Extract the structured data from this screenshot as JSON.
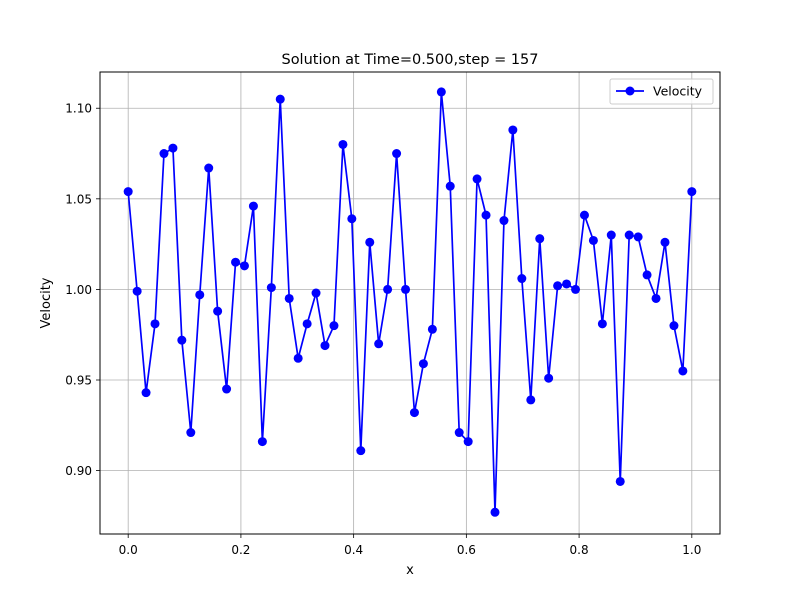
{
  "chart_data": {
    "type": "line",
    "title": "Solution at Time=0.500,step = 157",
    "xlabel": "x",
    "ylabel": "Velocity",
    "xlim": [
      -0.05,
      1.05
    ],
    "ylim": [
      0.865,
      1.12
    ],
    "xticks": [
      0.0,
      0.2,
      0.4,
      0.6,
      0.8,
      1.0
    ],
    "xtick_labels": [
      "0.0",
      "0.2",
      "0.4",
      "0.6",
      "0.8",
      "1.0"
    ],
    "yticks": [
      0.9,
      0.95,
      1.0,
      1.05,
      1.1
    ],
    "ytick_labels": [
      "0.90",
      "0.95",
      "1.00",
      "1.05",
      "1.10"
    ],
    "grid": true,
    "legend_position": "top-right",
    "series": [
      {
        "name": "Velocity",
        "color": "#0000ff",
        "marker": "circle",
        "x": [
          0.0,
          0.0159,
          0.0317,
          0.0476,
          0.0635,
          0.0794,
          0.0952,
          0.1111,
          0.127,
          0.1429,
          0.1587,
          0.1746,
          0.1905,
          0.2063,
          0.2222,
          0.2381,
          0.254,
          0.2698,
          0.2857,
          0.3016,
          0.3175,
          0.3333,
          0.3492,
          0.3651,
          0.381,
          0.3968,
          0.4127,
          0.4286,
          0.4444,
          0.4603,
          0.4762,
          0.4921,
          0.5079,
          0.5238,
          0.5397,
          0.5556,
          0.5714,
          0.5873,
          0.6032,
          0.619,
          0.6349,
          0.6508,
          0.6667,
          0.6825,
          0.6984,
          0.7143,
          0.7302,
          0.746,
          0.7619,
          0.7778,
          0.7937,
          0.8095,
          0.8254,
          0.8413,
          0.8571,
          0.873,
          0.8889,
          0.9048,
          0.9206,
          0.9365,
          0.9524,
          0.9683,
          0.9841,
          1.0
        ],
        "values": [
          1.054,
          0.999,
          0.943,
          0.981,
          1.075,
          1.078,
          0.972,
          0.921,
          0.997,
          1.067,
          0.988,
          0.945,
          1.015,
          1.013,
          1.046,
          0.916,
          1.001,
          1.105,
          0.995,
          0.962,
          0.981,
          0.998,
          0.969,
          0.98,
          1.08,
          1.039,
          0.911,
          1.026,
          0.97,
          1.0,
          1.075,
          1.0,
          0.932,
          0.959,
          0.978,
          1.109,
          1.057,
          0.921,
          0.916,
          1.061,
          1.041,
          0.877,
          1.038,
          1.088,
          1.006,
          0.939,
          1.028,
          0.951,
          1.002,
          1.003,
          1.0,
          1.041,
          1.027,
          0.981,
          1.03,
          0.894,
          1.03,
          1.029,
          1.008,
          0.995,
          1.026,
          0.98,
          0.955,
          1.054
        ]
      }
    ]
  }
}
